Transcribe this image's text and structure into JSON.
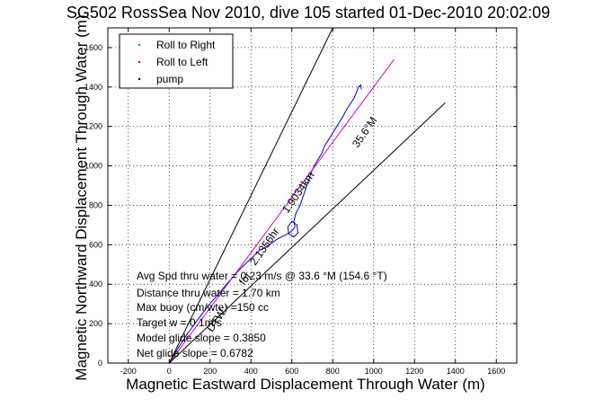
{
  "chart_data": {
    "type": "line",
    "title": "SG502 RossSea Nov 2010, dive 105 started 01-Dec-2010 20:02:09",
    "xlabel": "Magnetic Eastward Displacement Through Water (m)",
    "ylabel": "Magnetic Northward Displacement Through Water (m)",
    "xlim": [
      -300,
      1700
    ],
    "ylim": [
      0,
      1700
    ],
    "xticks": [
      -200,
      0,
      200,
      400,
      600,
      800,
      1000,
      1200,
      1400,
      1600
    ],
    "yticks": [
      0,
      200,
      400,
      600,
      800,
      1000,
      1200,
      1400,
      1600
    ],
    "grid": true,
    "legend_position": "top-left",
    "legend": [
      {
        "label": "Roll to Right",
        "color": "#00aa00",
        "marker": "dot"
      },
      {
        "label": "Roll to Left",
        "color": "#cc0000",
        "marker": "dot"
      },
      {
        "label": "pump",
        "color": "#000000",
        "marker": "dot"
      }
    ],
    "series": [
      {
        "color": "#0000cc",
        "points": [
          [
            0,
            0
          ],
          [
            40,
            70
          ],
          [
            90,
            150
          ],
          [
            140,
            220
          ],
          [
            190,
            290
          ],
          [
            240,
            350
          ],
          [
            290,
            410
          ],
          [
            340,
            470
          ],
          [
            390,
            520
          ],
          [
            440,
            570
          ],
          [
            490,
            600
          ],
          [
            530,
            630
          ],
          [
            570,
            650
          ],
          [
            600,
            670
          ],
          [
            615,
            690
          ],
          [
            610,
            720
          ],
          [
            620,
            760
          ],
          [
            640,
            800
          ],
          [
            660,
            860
          ],
          [
            680,
            920
          ],
          [
            700,
            980
          ],
          [
            720,
            1020
          ],
          [
            745,
            1060
          ],
          [
            760,
            1100
          ],
          [
            790,
            1150
          ],
          [
            820,
            1200
          ],
          [
            850,
            1250
          ],
          [
            870,
            1290
          ],
          [
            890,
            1320
          ],
          [
            905,
            1345
          ],
          [
            915,
            1370
          ],
          [
            925,
            1400
          ],
          [
            938,
            1410
          ],
          [
            940,
            1388
          ]
        ]
      },
      {
        "color": "#0000cc",
        "points": [
          [
            600,
            720
          ],
          [
            625,
            700
          ],
          [
            630,
            660
          ],
          [
            610,
            640
          ],
          [
            585,
            655
          ],
          [
            580,
            690
          ],
          [
            600,
            720
          ]
        ]
      },
      {
        "color": "#cc00cc",
        "points": [
          [
            0,
            0
          ],
          [
            1100,
            1540
          ]
        ]
      },
      {
        "color": "#000000",
        "points": [
          [
            0,
            0
          ],
          [
            800,
            1700
          ]
        ]
      },
      {
        "color": "#000000",
        "points": [
          [
            0,
            0
          ],
          [
            1350,
            1320
          ]
        ]
      }
    ],
    "annotations": {
      "rotated_heading": "35.6°M",
      "rotated_distance": "1.9034km",
      "rotated_mission": "2.1356hr",
      "rotated_ghost_1": "DTW - ",
      "rotated_ghost_2": "for "
    },
    "stats": [
      "Avg Spd thru water = 0.23 m/s @  33.6   °M (154.6 °T)",
      "Distance thru water = 1.70 km",
      "Max buoy (cm/wte) =150 cc",
      "Target w = 0.1m/s",
      "Model glide slope = 0.3850",
      "Net glide slope = 0.6782"
    ]
  }
}
